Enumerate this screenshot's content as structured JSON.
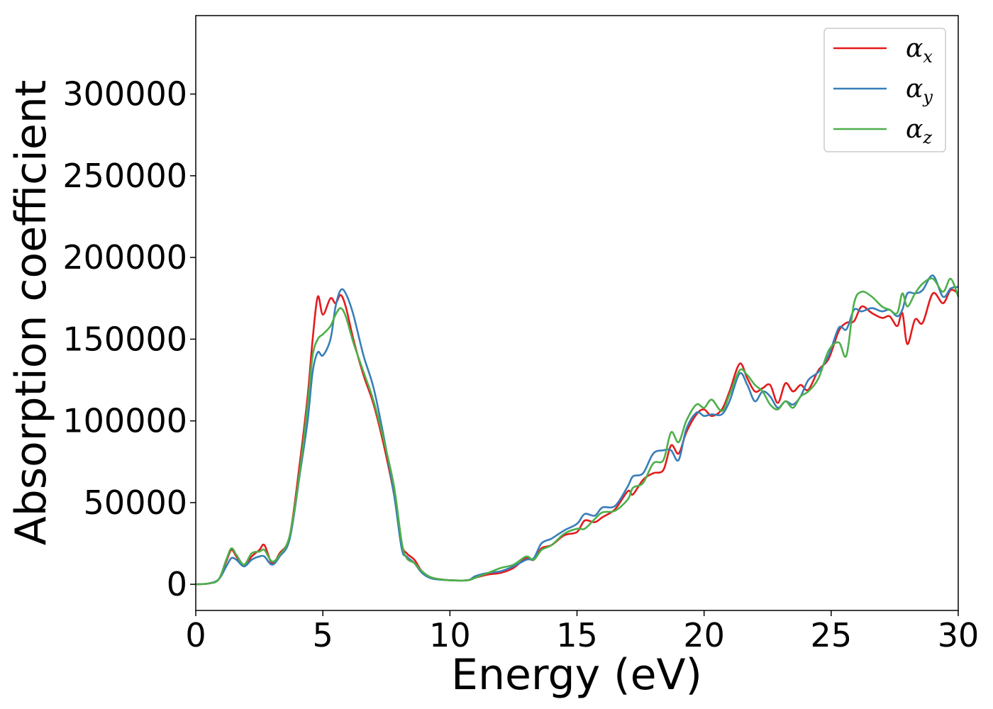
{
  "chart_data": {
    "type": "line",
    "xlabel": "Energy (eV)",
    "ylabel": "Absorption coefficient",
    "xlim": [
      0,
      30
    ],
    "ylim": [
      -16000,
      348000
    ],
    "x_ticks": [
      0,
      5,
      10,
      15,
      20,
      25,
      30
    ],
    "x_tick_labels": [
      "0",
      "5",
      "10",
      "15",
      "20",
      "25",
      "30"
    ],
    "y_ticks": [
      0,
      50000,
      100000,
      150000,
      200000,
      250000,
      300000
    ],
    "y_tick_labels": [
      "0",
      "50000",
      "100000",
      "150000",
      "200000",
      "250000",
      "300000"
    ],
    "grid": false,
    "legend_position": "top-right",
    "series": [
      {
        "name": "α_x",
        "symbol": "α",
        "subscript": "x",
        "color": "#e41a1c",
        "points": [
          [
            0,
            0
          ],
          [
            0.5,
            500
          ],
          [
            0.9,
            3000
          ],
          [
            1.2,
            14000
          ],
          [
            1.4,
            21000
          ],
          [
            1.6,
            17000
          ],
          [
            1.9,
            11000
          ],
          [
            2.2,
            17000
          ],
          [
            2.5,
            21000
          ],
          [
            2.7,
            24000
          ],
          [
            3.0,
            13000
          ],
          [
            3.3,
            19000
          ],
          [
            3.7,
            30000
          ],
          [
            4.1,
            75000
          ],
          [
            4.4,
            115000
          ],
          [
            4.6,
            150000
          ],
          [
            4.8,
            176000
          ],
          [
            5.0,
            165000
          ],
          [
            5.3,
            175000
          ],
          [
            5.5,
            172000
          ],
          [
            5.7,
            177000
          ],
          [
            5.9,
            170000
          ],
          [
            6.2,
            150000
          ],
          [
            6.6,
            128000
          ],
          [
            7.0,
            110000
          ],
          [
            7.4,
            85000
          ],
          [
            7.8,
            55000
          ],
          [
            8.1,
            25000
          ],
          [
            8.3,
            19000
          ],
          [
            8.6,
            15000
          ],
          [
            8.9,
            8000
          ],
          [
            9.3,
            4000
          ],
          [
            10.0,
            2500
          ],
          [
            10.7,
            2500
          ],
          [
            11.0,
            4000
          ],
          [
            11.5,
            6000
          ],
          [
            12.0,
            7000
          ],
          [
            12.5,
            10000
          ],
          [
            13.0,
            16000
          ],
          [
            13.3,
            15000
          ],
          [
            13.6,
            22000
          ],
          [
            14.0,
            24000
          ],
          [
            14.5,
            30000
          ],
          [
            15.0,
            32000
          ],
          [
            15.3,
            39000
          ],
          [
            15.7,
            38000
          ],
          [
            16.0,
            41000
          ],
          [
            16.5,
            46000
          ],
          [
            17.0,
            57000
          ],
          [
            17.2,
            55000
          ],
          [
            17.6,
            64000
          ],
          [
            18.0,
            68000
          ],
          [
            18.4,
            70000
          ],
          [
            18.7,
            85000
          ],
          [
            19.0,
            80000
          ],
          [
            19.3,
            93000
          ],
          [
            19.7,
            104000
          ],
          [
            20.0,
            107000
          ],
          [
            20.3,
            103000
          ],
          [
            20.7,
            107000
          ],
          [
            21.0,
            118000
          ],
          [
            21.4,
            135000
          ],
          [
            21.7,
            126000
          ],
          [
            22.0,
            118000
          ],
          [
            22.3,
            120000
          ],
          [
            22.6,
            122000
          ],
          [
            22.9,
            111000
          ],
          [
            23.2,
            123000
          ],
          [
            23.5,
            118000
          ],
          [
            23.8,
            122000
          ],
          [
            24.1,
            119000
          ],
          [
            24.5,
            131000
          ],
          [
            24.9,
            138000
          ],
          [
            25.3,
            155000
          ],
          [
            25.6,
            160000
          ],
          [
            25.9,
            161000
          ],
          [
            26.2,
            170000
          ],
          [
            26.6,
            166000
          ],
          [
            27.0,
            163000
          ],
          [
            27.3,
            164000
          ],
          [
            27.6,
            158000
          ],
          [
            27.8,
            166000
          ],
          [
            28.0,
            147000
          ],
          [
            28.3,
            162000
          ],
          [
            28.6,
            160000
          ],
          [
            29.0,
            178000
          ],
          [
            29.4,
            172000
          ],
          [
            29.7,
            180000
          ],
          [
            30.0,
            178000
          ]
        ]
      },
      {
        "name": "α_y",
        "symbol": "α",
        "subscript": "y",
        "color": "#377eb8",
        "points": [
          [
            0,
            0
          ],
          [
            0.5,
            500
          ],
          [
            0.9,
            3000
          ],
          [
            1.2,
            11000
          ],
          [
            1.4,
            16000
          ],
          [
            1.6,
            15000
          ],
          [
            1.9,
            11000
          ],
          [
            2.2,
            15000
          ],
          [
            2.5,
            17000
          ],
          [
            2.7,
            17000
          ],
          [
            3.0,
            12000
          ],
          [
            3.3,
            17000
          ],
          [
            3.7,
            28000
          ],
          [
            4.1,
            68000
          ],
          [
            4.4,
            100000
          ],
          [
            4.6,
            130000
          ],
          [
            4.8,
            142000
          ],
          [
            5.0,
            140000
          ],
          [
            5.3,
            150000
          ],
          [
            5.5,
            170000
          ],
          [
            5.7,
            180000
          ],
          [
            5.9,
            178000
          ],
          [
            6.2,
            165000
          ],
          [
            6.6,
            140000
          ],
          [
            7.0,
            120000
          ],
          [
            7.4,
            90000
          ],
          [
            7.8,
            55000
          ],
          [
            8.1,
            22000
          ],
          [
            8.3,
            17000
          ],
          [
            8.6,
            13000
          ],
          [
            8.9,
            7000
          ],
          [
            9.3,
            3500
          ],
          [
            10.0,
            2500
          ],
          [
            10.7,
            2500
          ],
          [
            11.0,
            5000
          ],
          [
            11.5,
            7000
          ],
          [
            12.0,
            8000
          ],
          [
            12.5,
            11000
          ],
          [
            13.0,
            15000
          ],
          [
            13.3,
            16000
          ],
          [
            13.6,
            25000
          ],
          [
            14.0,
            28000
          ],
          [
            14.5,
            33000
          ],
          [
            15.0,
            37000
          ],
          [
            15.3,
            43000
          ],
          [
            15.7,
            42000
          ],
          [
            16.0,
            47000
          ],
          [
            16.5,
            48000
          ],
          [
            17.0,
            60000
          ],
          [
            17.2,
            66000
          ],
          [
            17.6,
            68000
          ],
          [
            18.0,
            80000
          ],
          [
            18.4,
            82000
          ],
          [
            18.7,
            82000
          ],
          [
            19.0,
            76000
          ],
          [
            19.3,
            95000
          ],
          [
            19.7,
            105000
          ],
          [
            20.0,
            103000
          ],
          [
            20.3,
            104000
          ],
          [
            20.7,
            104000
          ],
          [
            21.0,
            112000
          ],
          [
            21.4,
            129000
          ],
          [
            21.7,
            122000
          ],
          [
            22.0,
            112000
          ],
          [
            22.3,
            118000
          ],
          [
            22.6,
            115000
          ],
          [
            22.9,
            108000
          ],
          [
            23.2,
            112000
          ],
          [
            23.5,
            110000
          ],
          [
            23.8,
            115000
          ],
          [
            24.1,
            125000
          ],
          [
            24.5,
            130000
          ],
          [
            24.9,
            140000
          ],
          [
            25.3,
            157000
          ],
          [
            25.6,
            156000
          ],
          [
            25.9,
            168000
          ],
          [
            26.2,
            167000
          ],
          [
            26.6,
            169000
          ],
          [
            27.0,
            167000
          ],
          [
            27.3,
            168000
          ],
          [
            27.6,
            164000
          ],
          [
            27.8,
            168000
          ],
          [
            28.0,
            178000
          ],
          [
            28.3,
            178000
          ],
          [
            28.6,
            180000
          ],
          [
            29.0,
            189000
          ],
          [
            29.4,
            176000
          ],
          [
            29.7,
            181000
          ],
          [
            30.0,
            182000
          ]
        ]
      },
      {
        "name": "α_z",
        "symbol": "α",
        "subscript": "z",
        "color": "#4daf4a",
        "points": [
          [
            0,
            0
          ],
          [
            0.5,
            500
          ],
          [
            0.9,
            3000
          ],
          [
            1.2,
            15000
          ],
          [
            1.4,
            22000
          ],
          [
            1.6,
            18000
          ],
          [
            1.9,
            12000
          ],
          [
            2.2,
            19000
          ],
          [
            2.5,
            20000
          ],
          [
            2.7,
            21000
          ],
          [
            3.0,
            14000
          ],
          [
            3.3,
            18000
          ],
          [
            3.7,
            30000
          ],
          [
            4.1,
            70000
          ],
          [
            4.4,
            110000
          ],
          [
            4.6,
            140000
          ],
          [
            4.8,
            150000
          ],
          [
            5.0,
            153000
          ],
          [
            5.3,
            158000
          ],
          [
            5.5,
            165000
          ],
          [
            5.7,
            169000
          ],
          [
            5.9,
            164000
          ],
          [
            6.2,
            148000
          ],
          [
            6.6,
            130000
          ],
          [
            7.0,
            112000
          ],
          [
            7.4,
            88000
          ],
          [
            7.8,
            60000
          ],
          [
            8.1,
            26000
          ],
          [
            8.3,
            16000
          ],
          [
            8.6,
            13000
          ],
          [
            8.9,
            8000
          ],
          [
            9.3,
            4000
          ],
          [
            10.0,
            2500
          ],
          [
            10.7,
            2500
          ],
          [
            11.0,
            4000
          ],
          [
            11.5,
            7000
          ],
          [
            12.0,
            10000
          ],
          [
            12.5,
            12000
          ],
          [
            13.0,
            17000
          ],
          [
            13.3,
            15000
          ],
          [
            13.6,
            21000
          ],
          [
            14.0,
            24000
          ],
          [
            14.5,
            31000
          ],
          [
            15.0,
            34000
          ],
          [
            15.3,
            34000
          ],
          [
            15.7,
            40000
          ],
          [
            16.0,
            44000
          ],
          [
            16.5,
            45000
          ],
          [
            17.0,
            52000
          ],
          [
            17.2,
            59000
          ],
          [
            17.6,
            62000
          ],
          [
            18.0,
            74000
          ],
          [
            18.4,
            76000
          ],
          [
            18.7,
            93000
          ],
          [
            19.0,
            87000
          ],
          [
            19.3,
            100000
          ],
          [
            19.7,
            110000
          ],
          [
            20.0,
            108000
          ],
          [
            20.3,
            113000
          ],
          [
            20.7,
            106000
          ],
          [
            21.0,
            116000
          ],
          [
            21.4,
            131000
          ],
          [
            21.7,
            128000
          ],
          [
            22.0,
            122000
          ],
          [
            22.3,
            118000
          ],
          [
            22.6,
            110000
          ],
          [
            22.9,
            107000
          ],
          [
            23.2,
            112000
          ],
          [
            23.5,
            108000
          ],
          [
            23.8,
            115000
          ],
          [
            24.1,
            118000
          ],
          [
            24.5,
            126000
          ],
          [
            24.9,
            143000
          ],
          [
            25.3,
            148000
          ],
          [
            25.6,
            140000
          ],
          [
            25.9,
            172000
          ],
          [
            26.2,
            179000
          ],
          [
            26.6,
            176000
          ],
          [
            27.0,
            170000
          ],
          [
            27.3,
            168000
          ],
          [
            27.6,
            166000
          ],
          [
            27.8,
            178000
          ],
          [
            28.0,
            170000
          ],
          [
            28.3,
            178000
          ],
          [
            28.6,
            184000
          ],
          [
            29.0,
            187000
          ],
          [
            29.4,
            179000
          ],
          [
            29.7,
            187000
          ],
          [
            30.0,
            176000
          ]
        ]
      }
    ]
  }
}
